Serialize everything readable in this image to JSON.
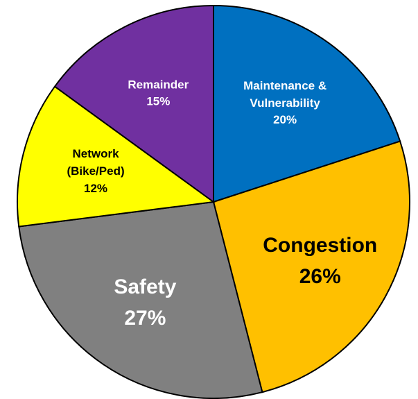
{
  "chart_data": {
    "type": "pie",
    "categories": [
      "Maintenance &\nVulnerability",
      "Congestion",
      "Safety",
      "Network\n(Bike/Ped)",
      "Remainder"
    ],
    "values": [
      20,
      26,
      27,
      12,
      15
    ],
    "value_labels": [
      "20%",
      "26%",
      "27%",
      "12%",
      "15%"
    ],
    "colors": [
      "#0070c0",
      "#ffc000",
      "#808080",
      "#ffff00",
      "#7030a0"
    ],
    "label_colors": [
      "#ffffff",
      "#000000",
      "#ffffff",
      "#000000",
      "#ffffff"
    ]
  }
}
